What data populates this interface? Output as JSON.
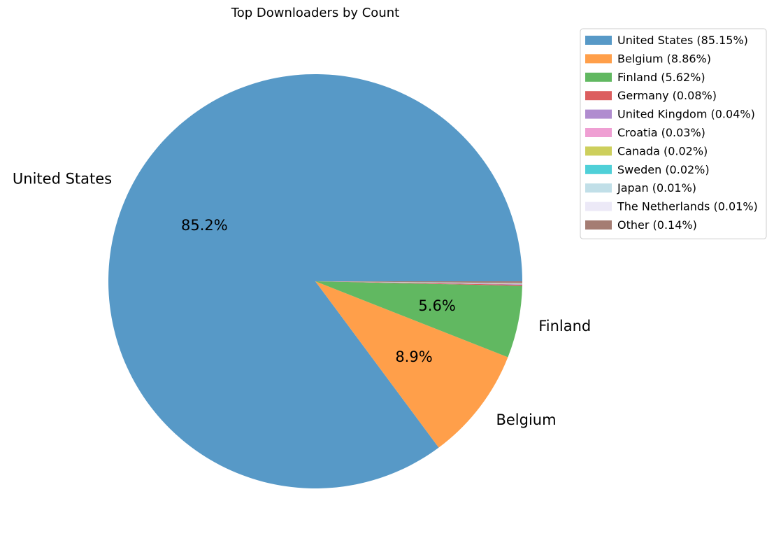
{
  "chart_data": {
    "type": "pie",
    "title": "Top Downloaders by Count",
    "slices": [
      {
        "label": "United States",
        "legend": "United States (85.15%)",
        "value": 85.15,
        "autopct": "85.2%",
        "color": "#5799c7",
        "show_label": true
      },
      {
        "label": "Belgium",
        "legend": "Belgium (8.86%)",
        "value": 8.86,
        "autopct": "8.9%",
        "color": "#ff9f4a",
        "show_label": true
      },
      {
        "label": "Finland",
        "legend": "Finland (5.62%)",
        "value": 5.62,
        "autopct": "5.6%",
        "color": "#61b861",
        "show_label": true
      },
      {
        "label": "Germany",
        "legend": "Germany (0.08%)",
        "value": 0.08,
        "autopct": "",
        "color": "#dc5e5f",
        "show_label": false
      },
      {
        "label": "United Kingdom",
        "legend": "United Kingdom (0.04%)",
        "value": 0.04,
        "autopct": "",
        "color": "#b08ccf",
        "show_label": false
      },
      {
        "label": "Croatia",
        "legend": "Croatia (0.03%)",
        "value": 0.03,
        "autopct": "",
        "color": "#ef9fd3",
        "show_label": false
      },
      {
        "label": "Canada",
        "legend": "Canada (0.02%)",
        "value": 0.02,
        "autopct": "",
        "color": "#cdcf5c",
        "show_label": false
      },
      {
        "label": "Sweden",
        "legend": "Sweden (0.02%)",
        "value": 0.02,
        "autopct": "",
        "color": "#4fd0d8",
        "show_label": false
      },
      {
        "label": "Japan",
        "legend": "Japan (0.01%)",
        "value": 0.01,
        "autopct": "",
        "color": "#c1dfe8",
        "show_label": false
      },
      {
        "label": "The Netherlands",
        "legend": "The Netherlands (0.01%)",
        "value": 0.01,
        "autopct": "",
        "color": "#ece9f7",
        "show_label": false
      },
      {
        "label": "Other",
        "legend": "Other (0.14%)",
        "value": 0.14,
        "autopct": "",
        "color": "#a57d73",
        "show_label": false
      }
    ],
    "start_angle_deg": 0,
    "direction": "counterclockwise",
    "legend_position": "upper-right"
  }
}
